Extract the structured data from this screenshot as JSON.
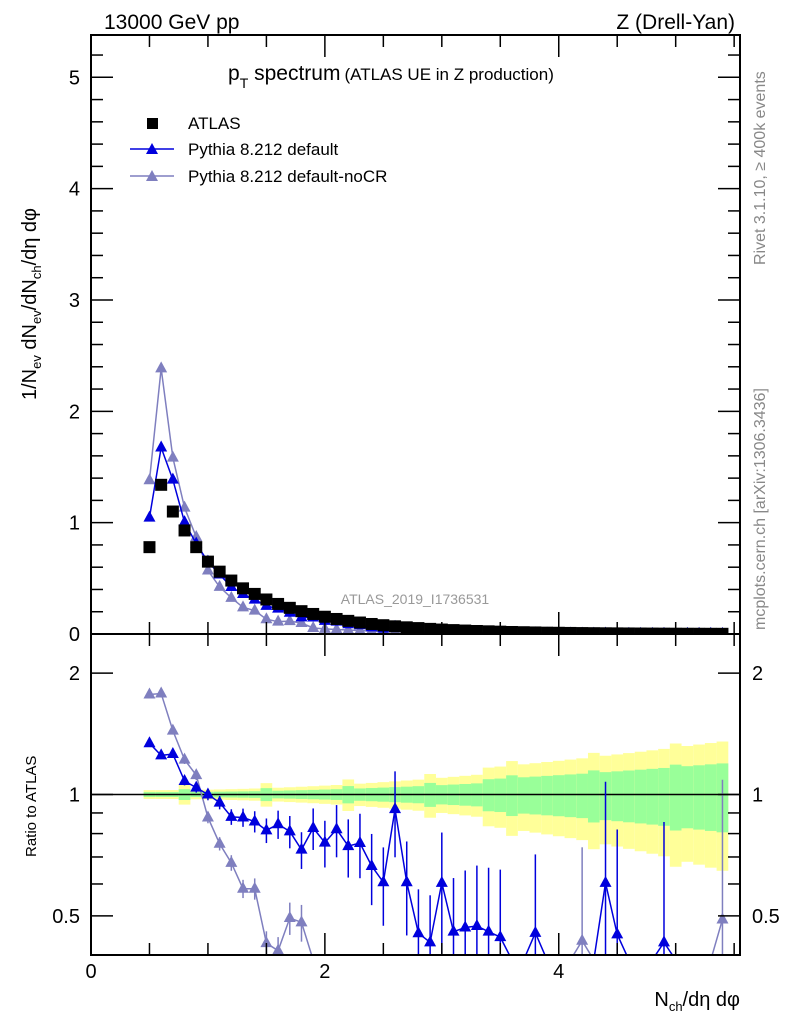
{
  "header": {
    "left": "13000 GeV pp",
    "right": "Z (Drell-Yan)"
  },
  "side_labels": {
    "rivet": "Rivet 3.1.10, ≥ 400k events",
    "mcplots": "mcplots.cern.ch [arXiv:1306.3436]"
  },
  "chart_data": {
    "type": "scatter",
    "title_main": "p",
    "title_sub": "T",
    "title_rest": " spectrum",
    "title_paren": "(ATLAS UE in Z production)",
    "analysis_label": "ATLAS_2019_I1736531",
    "xlabel": {
      "main": "N",
      "sub": "ch",
      "rest": "/dη dφ"
    },
    "ylabel": {
      "p1": "1/N",
      "s1": "ev",
      "p2": " dN",
      "s2": "ev",
      "p3": "/dN",
      "s3": "ch",
      "p4": "/dη dφ"
    },
    "ratio_ylabel": "Ratio to ATLAS",
    "xlim": [
      0,
      5.55
    ],
    "ylim": [
      0,
      5.38
    ],
    "ratio_ylim": [
      0.4,
      2.5
    ],
    "ratio_scale": "log",
    "x_ticks": [
      "0",
      "2",
      "4"
    ],
    "y_ticks": [
      "0",
      "1",
      "2",
      "3",
      "4",
      "5"
    ],
    "ratio_ticks": [
      "0.5",
      "1",
      "2"
    ],
    "legend_position": "top-left",
    "legend": [
      {
        "label": "ATLAS",
        "color": "#000000",
        "marker": "square"
      },
      {
        "label": "Pythia 8.212 default",
        "color": "#0000dd",
        "marker": "triangle"
      },
      {
        "label": "Pythia 8.212 default-noCR",
        "color": "#7f7fbf",
        "marker": "triangle"
      }
    ],
    "x": [
      0.5,
      0.6,
      0.7,
      0.8,
      0.9,
      1.0,
      1.1,
      1.2,
      1.3,
      1.4,
      1.5,
      1.6,
      1.7,
      1.8,
      1.9,
      2.0,
      2.1,
      2.2,
      2.3,
      2.4,
      2.5,
      2.6,
      2.7,
      2.8,
      2.9,
      3.0,
      3.1,
      3.2,
      3.3,
      3.4,
      3.5,
      3.6,
      3.7,
      3.8,
      3.9,
      4.0,
      4.1,
      4.2,
      4.3,
      4.4,
      4.5,
      4.6,
      4.7,
      4.8,
      4.9,
      5.0,
      5.1,
      5.2,
      5.3,
      5.4
    ],
    "atlas": [
      0.78,
      1.34,
      1.1,
      0.93,
      0.78,
      0.65,
      0.56,
      0.48,
      0.41,
      0.36,
      0.31,
      0.27,
      0.235,
      0.205,
      0.18,
      0.155,
      0.135,
      0.118,
      0.103,
      0.09,
      0.079,
      0.069,
      0.06,
      0.053,
      0.046,
      0.04,
      0.035,
      0.031,
      0.027,
      0.024,
      0.021,
      0.018,
      0.016,
      0.014,
      0.012,
      0.011,
      0.0095,
      0.0083,
      0.0073,
      0.0064,
      0.0056,
      0.0049,
      0.0043,
      0.0038,
      0.0033,
      0.0029,
      0.0025,
      0.0022,
      0.0019,
      0.0017
    ],
    "series_ratio": [
      {
        "name": "Pythia 8.212 default",
        "color": "#0000dd",
        "values": [
          1.34,
          1.25,
          1.26,
          1.08,
          1.04,
          1.0,
          0.955,
          0.88,
          0.877,
          0.857,
          0.815,
          0.844,
          0.81,
          0.73,
          0.826,
          0.76,
          0.82,
          0.745,
          0.758,
          0.665,
          0.606,
          0.92,
          0.606,
          0.453,
          0.43,
          0.604,
          0.457,
          0.468,
          0.472,
          0.457,
          0.443,
          0.3,
          0.3,
          0.454,
          0.3,
          0.3,
          0.3,
          0.3,
          0.3,
          0.604,
          0.45,
          0.3,
          0.3,
          0.3,
          0.43,
          0.3,
          0.3,
          0.3,
          0.3,
          0.3
        ]
      },
      {
        "name": "Pythia 8.212 default-noCR",
        "color": "#7f7fbf",
        "values": [
          1.77,
          1.78,
          1.44,
          1.22,
          1.117,
          0.877,
          0.755,
          0.677,
          0.584,
          0.584,
          0.428,
          0.41,
          0.494,
          0.482,
          0.3,
          0.3,
          0.3,
          0.3,
          0.3,
          0.3,
          0.3,
          0.3,
          0.3,
          0.3,
          0.3,
          0.3,
          0.3,
          0.3,
          0.3,
          0.3,
          0.3,
          0.3,
          0.3,
          0.3,
          0.3,
          0.3,
          0.3,
          0.434,
          0.3,
          0.3,
          0.3,
          0.3,
          0.3,
          0.3,
          0.3,
          0.3,
          0.3,
          0.3,
          0.3,
          0.49
        ]
      }
    ],
    "colors": {
      "band_inner": "#99ff99",
      "band_outer": "#ffff99"
    }
  }
}
